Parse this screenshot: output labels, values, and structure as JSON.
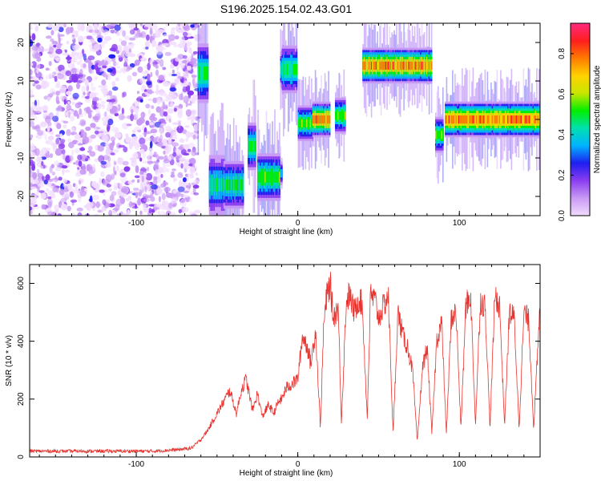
{
  "title": "S196.2025.154.02.43.G01",
  "chart_data": [
    {
      "type": "heatmap",
      "xlabel": "Height of straight line (km)",
      "ylabel": "Frequency (Hz)",
      "xlim": [
        -166,
        150
      ],
      "ylim": [
        -25,
        25
      ],
      "xticks": [
        -100,
        0,
        100
      ],
      "yticks": [
        -20,
        -10,
        0,
        10,
        20
      ],
      "colorbar": {
        "label": "Normalized spectral amplitude",
        "range": [
          0,
          0.95
        ],
        "ticks": [
          "0.0",
          "0.2",
          "0.4",
          "0.6",
          "0.8"
        ],
        "colors": [
          "#f2ddff",
          "#c99af5",
          "#8a3df0",
          "#1e1ef0",
          "#00b4ff",
          "#00e0b0",
          "#00ee00",
          "#c8e600",
          "#ffd200",
          "#ff7a00",
          "#ff1e1e",
          "#ff2a80"
        ]
      },
      "noise_region": {
        "x": [
          -166,
          -62
        ],
        "y": [
          -25,
          25
        ]
      },
      "segments": [
        {
          "x": [
            -62,
            -56
          ],
          "freq": 12,
          "spread": 5,
          "amp": 0.55
        },
        {
          "x": [
            -55,
            -46
          ],
          "freq": -17,
          "spread": 5,
          "amp": 0.5
        },
        {
          "x": [
            -46,
            -34
          ],
          "freq": -17,
          "spread": 4,
          "amp": 0.55
        },
        {
          "x": [
            -31,
            -26
          ],
          "freq": -7,
          "spread": 4,
          "amp": 0.55
        },
        {
          "x": [
            -25,
            -11
          ],
          "freq": -15,
          "spread": 4,
          "amp": 0.6
        },
        {
          "x": [
            -11,
            -10
          ],
          "freq": -14,
          "spread": 2,
          "amp": 0.4
        },
        {
          "x": [
            -11,
            -9
          ],
          "freq": 13,
          "spread": 3,
          "amp": 0.45
        },
        {
          "x": [
            -10,
            -1
          ],
          "freq": 13,
          "spread": 4,
          "amp": 0.55
        },
        {
          "x": [
            0,
            9
          ],
          "freq": -1,
          "spread": 3,
          "amp": 0.6
        },
        {
          "x": [
            9,
            20
          ],
          "freq": 0,
          "spread": 3,
          "amp": 0.85
        },
        {
          "x": [
            23,
            29
          ],
          "freq": 1,
          "spread": 3,
          "amp": 0.6
        },
        {
          "x": [
            40,
            83
          ],
          "freq": 14,
          "spread": 3,
          "amp": 0.85
        },
        {
          "x": [
            85,
            90
          ],
          "freq": -4,
          "spread": 3,
          "amp": 0.6
        },
        {
          "x": [
            91,
            150
          ],
          "freq": 0,
          "spread": 3,
          "amp": 0.85
        }
      ]
    },
    {
      "type": "line",
      "xlabel": "Height of straight line (km)",
      "ylabel": "SNR (10 * v/v)",
      "xlim": [
        -166,
        150
      ],
      "ylim": [
        0,
        665
      ],
      "xticks": [
        -100,
        0,
        100
      ],
      "yticks": [
        0,
        200,
        400,
        600
      ],
      "color": "#e8332e",
      "x": [
        -166,
        -150,
        -130,
        -110,
        -90,
        -75,
        -66,
        -60,
        -56,
        -52,
        -48,
        -45,
        -42,
        -38,
        -35,
        -32,
        -28,
        -25,
        -22,
        -18,
        -15,
        -12,
        -10,
        -7,
        -4,
        -2,
        0,
        3,
        6,
        8,
        11,
        14,
        16,
        18,
        20,
        22,
        25,
        27,
        30,
        32,
        35,
        38,
        40,
        43,
        45,
        48,
        50,
        53,
        56,
        59,
        62,
        65,
        68,
        71,
        74,
        77,
        80,
        83,
        86,
        89,
        92,
        95,
        98,
        101,
        104,
        107,
        110,
        113,
        116,
        119,
        122,
        125,
        128,
        131,
        134,
        137,
        140,
        143,
        146,
        150
      ],
      "y": [
        20,
        20,
        20,
        20,
        20,
        25,
        30,
        60,
        90,
        130,
        170,
        200,
        230,
        150,
        230,
        270,
        160,
        220,
        140,
        180,
        150,
        190,
        200,
        240,
        250,
        260,
        270,
        420,
        380,
        320,
        440,
        100,
        450,
        560,
        600,
        480,
        520,
        120,
        540,
        560,
        500,
        550,
        520,
        130,
        560,
        540,
        480,
        520,
        560,
        80,
        500,
        420,
        380,
        300,
        50,
        300,
        380,
        80,
        400,
        470,
        80,
        480,
        500,
        100,
        520,
        560,
        110,
        540,
        520,
        100,
        560,
        520,
        110,
        500,
        480,
        100,
        500,
        470,
        100,
        520
      ]
    }
  ]
}
